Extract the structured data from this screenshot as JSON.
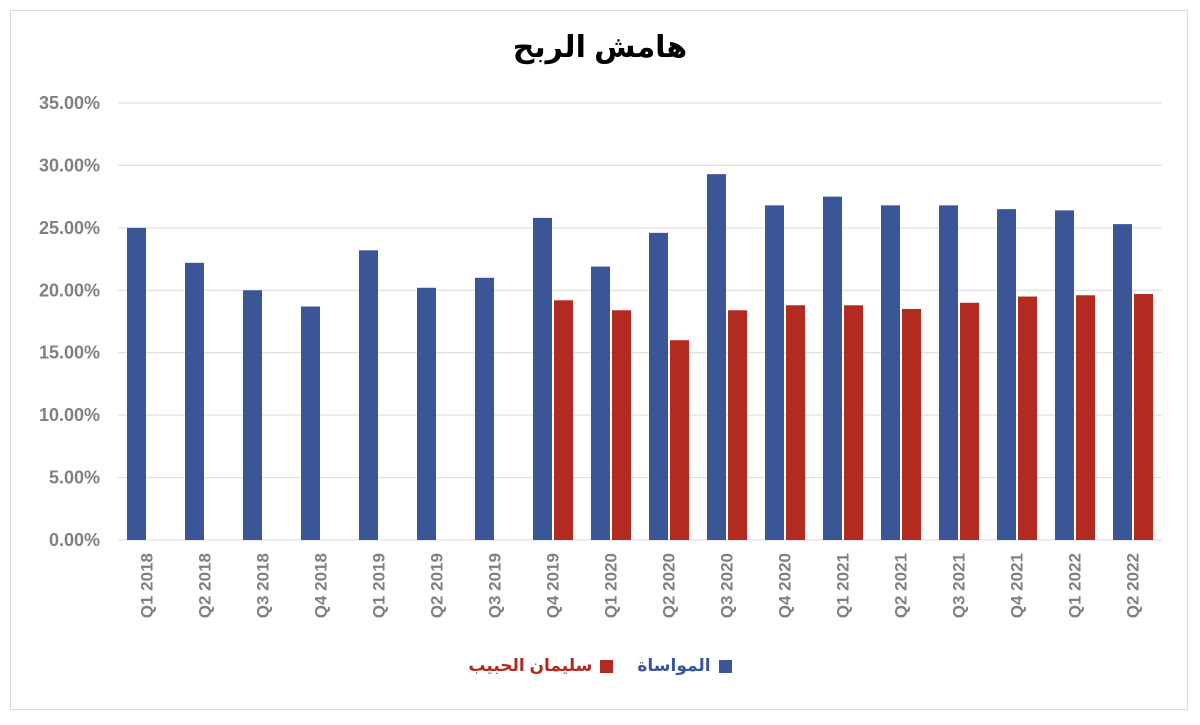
{
  "colors": {
    "almowasat": "#3a5696",
    "alhabib": "#b22a20"
  },
  "chart_data": {
    "type": "bar",
    "title": "هامش الربح",
    "xlabel": "",
    "ylabel": "",
    "ylim": [
      0,
      35
    ],
    "y_tick_values": [
      0,
      5,
      10,
      15,
      20,
      25,
      30,
      35
    ],
    "y_tick_labels": [
      "0.00%",
      "5.00%",
      "10.00%",
      "15.00%",
      "20.00%",
      "25.00%",
      "30.00%",
      "35.00%"
    ],
    "grid": true,
    "legend_position": "bottom",
    "categories": [
      "Q1 2018",
      "Q2 2018",
      "Q3 2018",
      "Q4 2018",
      "Q1 2019",
      "Q2 2019",
      "Q3 2019",
      "Q4 2019",
      "Q1 2020",
      "Q2 2020",
      "Q3 2020",
      "Q4 2020",
      "Q1 2021",
      "Q2 2021",
      "Q3 2021",
      "Q4 2021",
      "Q1 2022",
      "Q2 2022"
    ],
    "series": [
      {
        "name": "المواساة",
        "color": "#3a5696",
        "values": [
          25.0,
          22.2,
          20.0,
          18.7,
          23.2,
          20.2,
          21.0,
          25.8,
          21.9,
          24.6,
          29.3,
          26.8,
          27.5,
          26.8,
          26.8,
          26.5,
          26.4,
          25.3
        ]
      },
      {
        "name": "سليمان الحبيب",
        "color": "#b22a20",
        "values": [
          null,
          null,
          null,
          null,
          null,
          null,
          null,
          19.2,
          18.4,
          16.0,
          18.4,
          18.8,
          18.8,
          18.5,
          19.0,
          19.5,
          19.6,
          19.7
        ]
      }
    ]
  }
}
